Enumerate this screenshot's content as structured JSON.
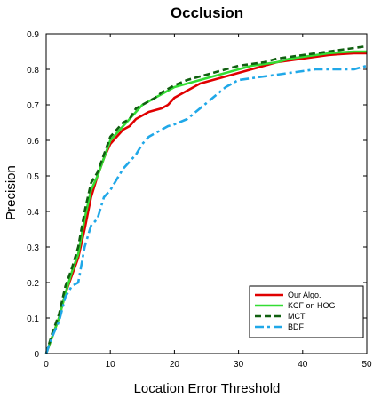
{
  "chart_data": {
    "type": "line",
    "title": "Occlusion",
    "xlabel": "Location Error Threshold",
    "ylabel": "Precision",
    "xlim": [
      0,
      50
    ],
    "ylim": [
      0,
      0.9
    ],
    "xticks": [
      0,
      10,
      20,
      30,
      40,
      50
    ],
    "yticks": [
      0,
      0.1,
      0.2,
      0.3,
      0.4,
      0.5,
      0.6,
      0.7,
      0.8,
      0.9
    ],
    "grid": false,
    "legend_position": "bottom-right",
    "series": [
      {
        "name": "Our Algo.",
        "color": "#e00000",
        "dash": "solid",
        "x": [
          0,
          1,
          2,
          3,
          4,
          5,
          6,
          7,
          8,
          9,
          10,
          11,
          12,
          13,
          14,
          15,
          16,
          17,
          18,
          19,
          20,
          22,
          24,
          26,
          28,
          30,
          32,
          34,
          36,
          38,
          40,
          42,
          44,
          46,
          48,
          50
        ],
        "y": [
          0,
          0.05,
          0.1,
          0.17,
          0.22,
          0.27,
          0.35,
          0.44,
          0.5,
          0.55,
          0.59,
          0.61,
          0.63,
          0.64,
          0.66,
          0.67,
          0.68,
          0.685,
          0.69,
          0.7,
          0.72,
          0.74,
          0.76,
          0.77,
          0.78,
          0.79,
          0.8,
          0.81,
          0.82,
          0.825,
          0.83,
          0.835,
          0.84,
          0.843,
          0.845,
          0.845
        ]
      },
      {
        "name": "KCF on HOG",
        "color": "#33dd33",
        "dash": "solid",
        "x": [
          0,
          1,
          2,
          3,
          4,
          5,
          6,
          7,
          8,
          9,
          10,
          11,
          12,
          13,
          14,
          15,
          16,
          17,
          18,
          20,
          22,
          24,
          26,
          28,
          30,
          32,
          34,
          36,
          38,
          40,
          42,
          44,
          46,
          48,
          50
        ],
        "y": [
          0,
          0.05,
          0.1,
          0.17,
          0.23,
          0.28,
          0.38,
          0.46,
          0.5,
          0.55,
          0.6,
          0.62,
          0.64,
          0.66,
          0.68,
          0.7,
          0.71,
          0.72,
          0.73,
          0.75,
          0.76,
          0.77,
          0.78,
          0.79,
          0.8,
          0.81,
          0.815,
          0.82,
          0.83,
          0.835,
          0.84,
          0.845,
          0.848,
          0.85,
          0.85
        ]
      },
      {
        "name": "MCT",
        "color": "#106010",
        "dash": "dashed",
        "x": [
          0,
          1,
          2,
          3,
          4,
          5,
          6,
          7,
          8,
          9,
          10,
          11,
          12,
          13,
          14,
          15,
          16,
          17,
          18,
          20,
          22,
          24,
          26,
          28,
          30,
          32,
          34,
          36,
          38,
          40,
          42,
          44,
          46,
          48,
          50
        ],
        "y": [
          0,
          0.06,
          0.11,
          0.19,
          0.24,
          0.3,
          0.4,
          0.48,
          0.51,
          0.56,
          0.61,
          0.63,
          0.65,
          0.66,
          0.69,
          0.7,
          0.71,
          0.72,
          0.735,
          0.755,
          0.77,
          0.78,
          0.79,
          0.8,
          0.81,
          0.815,
          0.82,
          0.83,
          0.835,
          0.84,
          0.845,
          0.85,
          0.855,
          0.86,
          0.865
        ]
      },
      {
        "name": "BDF",
        "color": "#20a8e8",
        "dash": "dashdot",
        "x": [
          0,
          1,
          2,
          3,
          4,
          5,
          6,
          7,
          8,
          9,
          10,
          11,
          12,
          13,
          14,
          15,
          16,
          17,
          18,
          19,
          20,
          22,
          24,
          26,
          28,
          30,
          32,
          34,
          36,
          38,
          40,
          42,
          44,
          46,
          48,
          50
        ],
        "y": [
          0,
          0.05,
          0.09,
          0.16,
          0.19,
          0.2,
          0.3,
          0.36,
          0.38,
          0.44,
          0.46,
          0.49,
          0.52,
          0.54,
          0.56,
          0.59,
          0.61,
          0.62,
          0.63,
          0.64,
          0.645,
          0.66,
          0.69,
          0.72,
          0.75,
          0.77,
          0.775,
          0.78,
          0.785,
          0.79,
          0.795,
          0.8,
          0.8,
          0.8,
          0.8,
          0.81
        ]
      }
    ]
  }
}
